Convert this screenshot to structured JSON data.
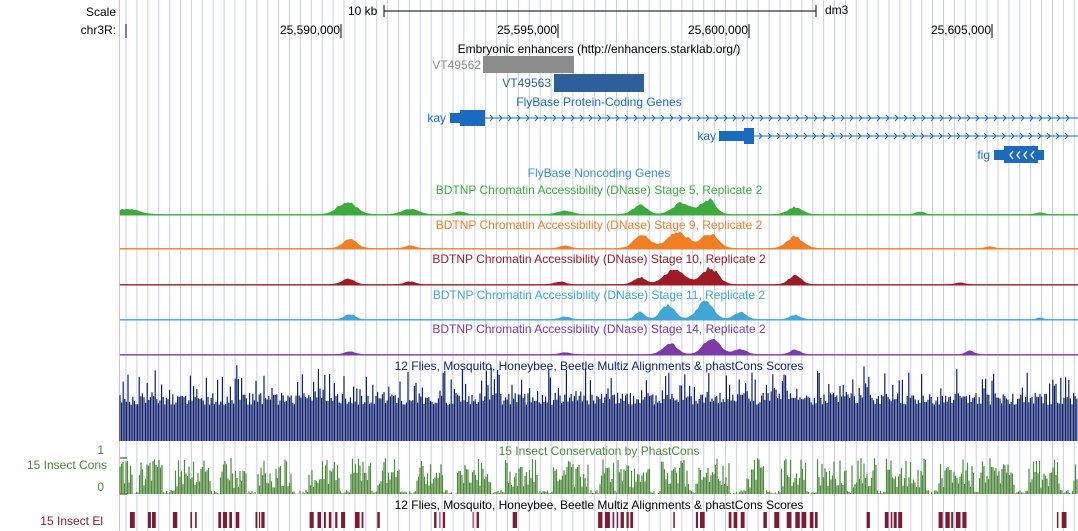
{
  "ruler": {
    "scale_label": "Scale",
    "chrom_label": "chr3R:",
    "scale_bar_label": "10 kb",
    "assembly": "dm3",
    "ticks": [
      "25,590,000",
      "25,595,000",
      "25,600,000",
      "25,605,000"
    ]
  },
  "tracks": {
    "enhancers": {
      "title": "Embryonic enhancers (http://enhancers.starklab.org/)",
      "items": [
        {
          "name": "VT49562",
          "color": "#8c8c8c"
        },
        {
          "name": "VT49563",
          "color": "#2d5f9a"
        }
      ]
    },
    "genes": {
      "title": "FlyBase Protein-Coding Genes",
      "color": "#1a6bbf",
      "items": [
        {
          "name": "kay"
        },
        {
          "name": "kay"
        },
        {
          "name": "fig"
        }
      ]
    },
    "noncoding": {
      "title": "FlyBase Noncoding Genes",
      "color": "#3a8fd4"
    },
    "dnase": [
      {
        "title": "BDTNP Chromatin Accessibility (DNase) Stage 5, Replicate 2",
        "color": "#3daa3d"
      },
      {
        "title": "BDTNP Chromatin Accessibility (DNase) Stage 9, Replicate 2",
        "color": "#f07f24"
      },
      {
        "title": "BDTNP Chromatin Accessibility (DNase) Stage 10, Replicate 2",
        "color": "#9b1c24"
      },
      {
        "title": "BDTNP Chromatin Accessibility (DNase) Stage 11, Replicate 2",
        "color": "#3fa6d6"
      },
      {
        "title": "BDTNP Chromatin Accessibility (DNase) Stage 14, Replicate 2",
        "color": "#7b3aa8"
      }
    ],
    "multiz": {
      "title": "12 Flies, Mosquito, Honeybee, Beetle Multiz Alignments & phastCons Scores",
      "color": "#0e1f6b"
    },
    "cons": {
      "title": "15 Insect Conservation by PhastCons",
      "side_label": "15 Insect Cons",
      "y_max": "1",
      "y_min": "0",
      "color": "#4d8a3a"
    },
    "elements": {
      "title": "12 Flies, Mosquito, Honeybee, Beetle Multiz Alignments & phastCons Scores",
      "side_label": "15 Insect El",
      "color": "#7d1a34"
    }
  }
}
